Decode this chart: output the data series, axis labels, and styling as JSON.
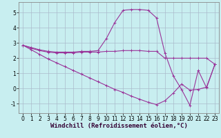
{
  "xlabel": "Windchill (Refroidissement éolien,°C)",
  "bg_color": "#c8eef0",
  "line_color": "#993399",
  "xlim": [
    -0.5,
    23.5
  ],
  "ylim": [
    -1.6,
    5.7
  ],
  "xticks": [
    0,
    1,
    2,
    3,
    4,
    5,
    6,
    7,
    8,
    9,
    10,
    11,
    12,
    13,
    14,
    15,
    16,
    17,
    18,
    19,
    20,
    21,
    22,
    23
  ],
  "yticks": [
    -1,
    0,
    1,
    2,
    3,
    4,
    5
  ],
  "line1_x": [
    0,
    1,
    2,
    3,
    4,
    5,
    6,
    7,
    8,
    9,
    10,
    11,
    12,
    13,
    14,
    15,
    16,
    17,
    18,
    19,
    20,
    21,
    22,
    23
  ],
  "line1_y": [
    2.85,
    2.7,
    2.55,
    2.45,
    2.4,
    2.4,
    2.4,
    2.45,
    2.45,
    2.5,
    3.3,
    4.35,
    5.15,
    5.2,
    5.2,
    5.15,
    4.65,
    2.35,
    0.85,
    -0.05,
    -1.1,
    1.2,
    0.05,
    1.6
  ],
  "line2_x": [
    0,
    1,
    2,
    3,
    4,
    5,
    6,
    7,
    8,
    9,
    10,
    11,
    12,
    13,
    14,
    15,
    16,
    17,
    18,
    19,
    20,
    21,
    22,
    23
  ],
  "line2_y": [
    2.85,
    2.65,
    2.5,
    2.4,
    2.35,
    2.35,
    2.35,
    2.4,
    2.4,
    2.4,
    2.45,
    2.45,
    2.5,
    2.5,
    2.5,
    2.45,
    2.45,
    2.0,
    2.0,
    2.0,
    2.0,
    2.0,
    2.0,
    1.6
  ],
  "line3_x": [
    0,
    1,
    2,
    3,
    4,
    5,
    6,
    7,
    8,
    9,
    10,
    11,
    12,
    13,
    14,
    15,
    16,
    17,
    18,
    19,
    20,
    21,
    22,
    23
  ],
  "line3_y": [
    2.85,
    2.55,
    2.25,
    1.95,
    1.7,
    1.45,
    1.2,
    0.95,
    0.7,
    0.45,
    0.2,
    -0.05,
    -0.25,
    -0.5,
    -0.7,
    -0.9,
    -1.05,
    -0.8,
    -0.3,
    0.3,
    -0.1,
    -0.05,
    0.1,
    1.6
  ],
  "grid_color": "#aabbcc",
  "tick_fontsize": 5.5,
  "label_fontsize": 6.5
}
